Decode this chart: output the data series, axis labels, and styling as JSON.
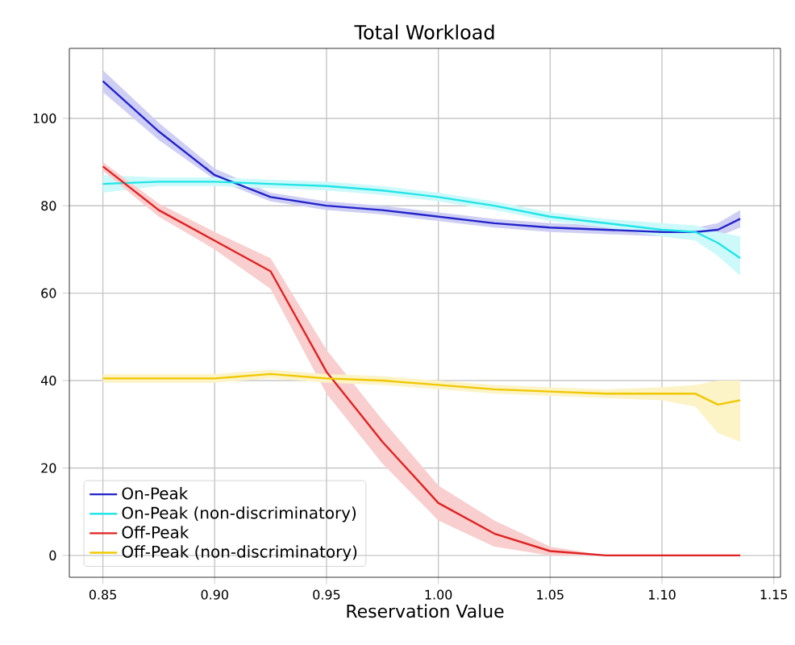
{
  "chart_data": {
    "type": "line",
    "title": "Total Workload",
    "xlabel": "Reservation Value",
    "x": [
      0.85,
      0.875,
      0.9,
      0.925,
      0.95,
      0.975,
      1.0,
      1.025,
      1.05,
      1.075,
      1.1,
      1.115,
      1.125,
      1.135
    ],
    "series": [
      {
        "name": "On-Peak",
        "color": "#2323cc",
        "values": [
          108.5,
          97,
          87,
          82,
          80,
          79,
          77.5,
          76,
          75,
          74.5,
          74,
          74,
          74.5,
          77
        ],
        "lower": [
          106,
          95,
          86,
          81,
          79,
          78,
          76.5,
          75,
          74,
          73.5,
          73,
          73,
          73,
          75
        ],
        "upper": [
          111,
          99,
          88.5,
          83,
          81,
          80,
          78.5,
          77,
          76,
          75.5,
          75,
          75,
          76,
          79
        ]
      },
      {
        "name": "On-Peak (non-discriminatory)",
        "color": "#22e5e8",
        "values": [
          85,
          85.5,
          85.5,
          85,
          84.5,
          83.5,
          82,
          80,
          77.5,
          76,
          74.5,
          74,
          71.5,
          68
        ],
        "lower": [
          83,
          84.5,
          84.5,
          84,
          83.5,
          82.5,
          81,
          79,
          76.5,
          75,
          73,
          72,
          68.5,
          64
        ],
        "upper": [
          87,
          86.5,
          86.5,
          86,
          85.5,
          84.5,
          83,
          81,
          78.5,
          77,
          76,
          75.5,
          74,
          73
        ]
      },
      {
        "name": "Off-Peak",
        "color": "#e02222",
        "values": [
          89,
          79,
          72,
          65,
          42,
          26,
          12,
          5,
          1,
          0,
          0,
          0,
          0,
          0
        ],
        "lower": [
          88,
          77.5,
          70,
          61,
          37,
          21,
          8,
          2,
          0,
          0,
          0,
          0,
          0,
          0
        ],
        "upper": [
          90,
          80.5,
          74,
          68,
          47,
          31,
          16,
          8,
          2,
          0,
          0,
          0,
          0,
          0
        ]
      },
      {
        "name": "Off-Peak (non-discriminatory)",
        "color": "#f0c800",
        "values": [
          40.5,
          40.5,
          40.5,
          41.5,
          40.5,
          40,
          39,
          38,
          37.5,
          37,
          37,
          37,
          34.5,
          35.5
        ],
        "lower": [
          39.5,
          39.5,
          39.5,
          40.5,
          39.5,
          39,
          38,
          37,
          36.5,
          36,
          35.5,
          34,
          28,
          26
        ],
        "upper": [
          41.5,
          41.5,
          41.5,
          42.5,
          41.5,
          41,
          40,
          39,
          38.5,
          38,
          38.5,
          39,
          40,
          40
        ]
      }
    ],
    "xlim": [
      0.835,
      1.153
    ],
    "ylim": [
      -5,
      116
    ],
    "xticks": [
      0.85,
      {
        "value": 0.9,
        "label": "0.90"
      },
      0.95,
      {
        "value": 1.0,
        "label": "1.00"
      },
      1.05,
      {
        "value": 1.1,
        "label": "1.10"
      },
      1.15
    ],
    "yticks": [
      0,
      20,
      40,
      60,
      80,
      100
    ],
    "grid": true,
    "legend": "bottom left",
    "line_style": "solid"
  }
}
